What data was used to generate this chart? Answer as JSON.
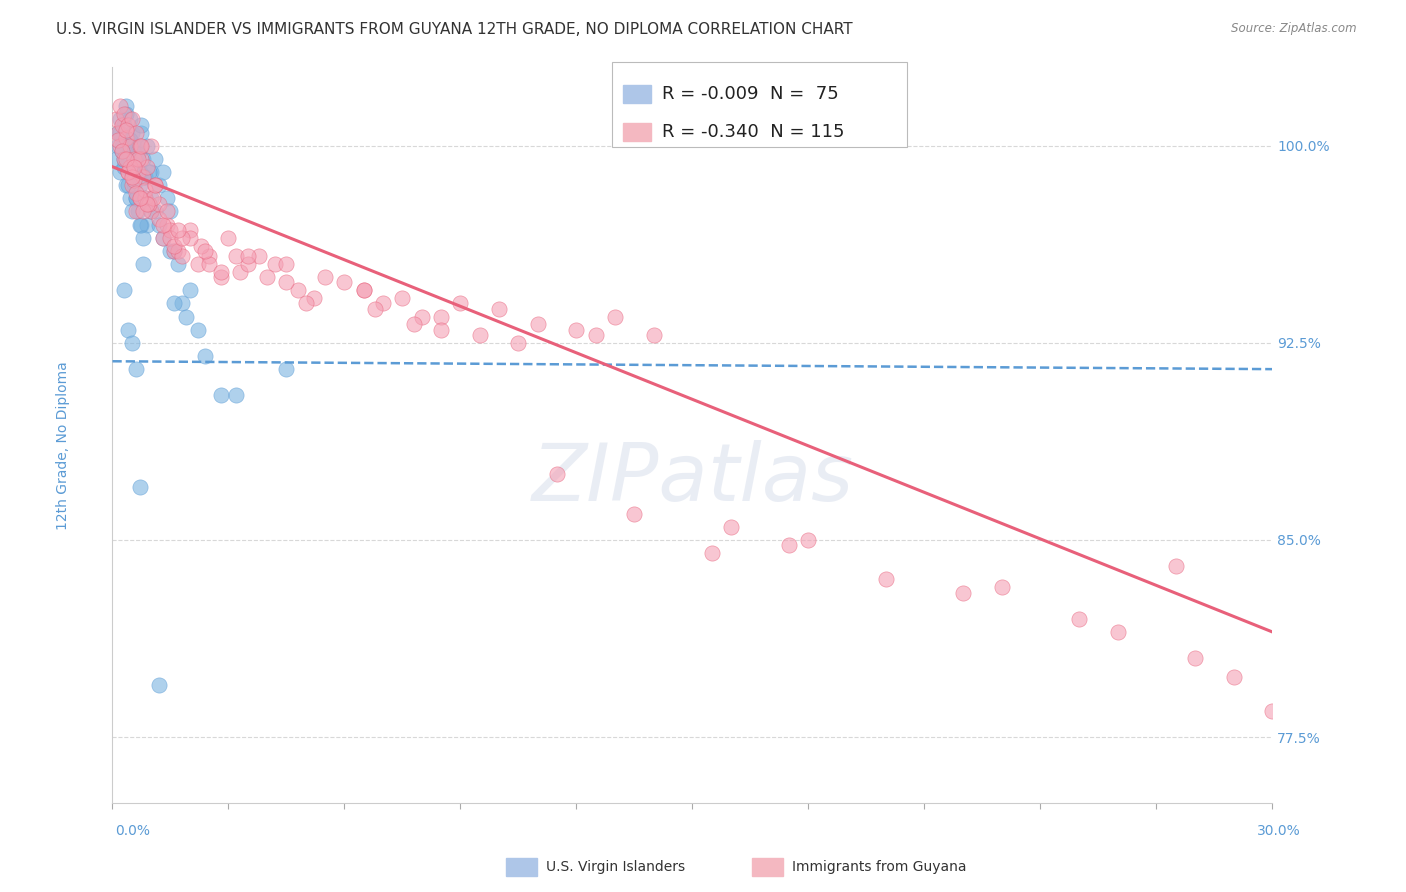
{
  "title": "U.S. VIRGIN ISLANDER VS IMMIGRANTS FROM GUYANA 12TH GRADE, NO DIPLOMA CORRELATION CHART",
  "source": "Source: ZipAtlas.com",
  "ylabel": "12th Grade, No Diploma",
  "ymin": 75.0,
  "ymax": 103.0,
  "xmin": 0.0,
  "xmax": 30.0,
  "legend_entries": [
    {
      "label": "R = -0.009  N =  75",
      "color": "#aec6e8"
    },
    {
      "label": "R = -0.340  N = 115",
      "color": "#f4b8c1"
    }
  ],
  "legend_bottom": [
    "U.S. Virgin Islanders",
    "Immigrants from Guyana"
  ],
  "watermark": "ZIPatlas",
  "blue_scatter_x": [
    0.1,
    0.15,
    0.2,
    0.2,
    0.25,
    0.3,
    0.3,
    0.35,
    0.35,
    0.4,
    0.4,
    0.45,
    0.45,
    0.5,
    0.5,
    0.55,
    0.55,
    0.6,
    0.6,
    0.65,
    0.65,
    0.7,
    0.7,
    0.75,
    0.75,
    0.8,
    0.85,
    0.9,
    0.9,
    1.0,
    1.0,
    1.1,
    1.1,
    1.2,
    1.2,
    1.3,
    1.3,
    1.4,
    1.5,
    1.6,
    1.7,
    1.8,
    1.9,
    2.0,
    2.2,
    2.4,
    0.15,
    0.25,
    0.35,
    0.45,
    0.55,
    0.65,
    0.75,
    0.85,
    0.95,
    0.2,
    0.3,
    0.4,
    0.5,
    0.6,
    0.7,
    0.8,
    1.0,
    1.5,
    2.8,
    1.6,
    0.3,
    0.4,
    0.5,
    0.6,
    0.7,
    4.5,
    0.8,
    3.2,
    1.2
  ],
  "blue_scatter_y": [
    99.5,
    100.5,
    101.0,
    99.0,
    100.0,
    100.8,
    99.2,
    101.5,
    98.5,
    100.0,
    99.5,
    101.0,
    98.0,
    100.5,
    99.0,
    100.0,
    98.5,
    99.5,
    98.0,
    100.0,
    97.5,
    99.0,
    98.5,
    100.5,
    97.0,
    99.5,
    98.0,
    100.0,
    97.0,
    99.0,
    98.0,
    99.5,
    97.5,
    98.5,
    97.0,
    99.0,
    96.5,
    98.0,
    97.5,
    96.0,
    95.5,
    94.0,
    93.5,
    94.5,
    93.0,
    92.0,
    100.0,
    99.8,
    101.2,
    100.2,
    99.3,
    99.7,
    100.8,
    98.8,
    99.0,
    100.5,
    99.5,
    98.5,
    97.5,
    98.0,
    97.0,
    96.5,
    97.5,
    96.0,
    90.5,
    94.0,
    94.5,
    93.0,
    92.5,
    91.5,
    87.0,
    91.5,
    95.5,
    90.5,
    79.5
  ],
  "pink_scatter_x": [
    0.1,
    0.15,
    0.2,
    0.2,
    0.25,
    0.3,
    0.3,
    0.35,
    0.4,
    0.4,
    0.45,
    0.5,
    0.5,
    0.55,
    0.6,
    0.6,
    0.65,
    0.7,
    0.7,
    0.75,
    0.8,
    0.85,
    0.9,
    1.0,
    1.0,
    1.1,
    1.2,
    1.3,
    1.4,
    1.5,
    1.6,
    0.15,
    0.25,
    0.35,
    0.45,
    0.55,
    0.65,
    0.75,
    0.85,
    0.95,
    1.05,
    1.5,
    1.7,
    2.0,
    2.2,
    2.5,
    2.8,
    3.0,
    3.3,
    3.8,
    4.2,
    4.8,
    5.5,
    6.0,
    6.5,
    7.0,
    8.0,
    9.0,
    10.0,
    11.0,
    12.0,
    13.0,
    14.0,
    5.2,
    4.5,
    3.5,
    2.5,
    1.8,
    6.8,
    7.5,
    8.5,
    9.5,
    2.3,
    4.0,
    3.2,
    1.2,
    0.8,
    0.6,
    0.4,
    1.6,
    2.8,
    5.0,
    7.8,
    10.5,
    12.5,
    15.5,
    17.5,
    20.0,
    22.0,
    25.0,
    27.5,
    30.0,
    1.3,
    0.9,
    1.1,
    2.0,
    0.7,
    0.5,
    1.4,
    0.35,
    3.5,
    1.8,
    2.4,
    4.5,
    6.5,
    0.55,
    1.7,
    8.5,
    16.0,
    23.0,
    28.0,
    29.0,
    26.0,
    18.0,
    13.5,
    11.5
  ],
  "pink_scatter_y": [
    101.0,
    100.5,
    101.5,
    100.0,
    100.8,
    101.2,
    99.5,
    100.3,
    100.8,
    99.0,
    100.0,
    101.0,
    98.5,
    99.5,
    100.5,
    97.5,
    99.0,
    100.0,
    98.0,
    99.5,
    98.8,
    98.0,
    99.2,
    100.0,
    97.5,
    98.5,
    97.8,
    96.5,
    97.0,
    96.8,
    96.0,
    100.2,
    99.8,
    100.6,
    99.2,
    98.7,
    99.5,
    100.0,
    98.3,
    97.8,
    98.0,
    96.5,
    96.0,
    96.8,
    95.5,
    95.8,
    95.0,
    96.5,
    95.2,
    95.8,
    95.5,
    94.5,
    95.0,
    94.8,
    94.5,
    94.0,
    93.5,
    94.0,
    93.8,
    93.2,
    93.0,
    93.5,
    92.8,
    94.2,
    94.8,
    95.5,
    95.5,
    95.8,
    93.8,
    94.2,
    93.5,
    92.8,
    96.2,
    95.0,
    95.8,
    97.2,
    97.5,
    98.2,
    99.0,
    96.2,
    95.2,
    94.0,
    93.2,
    92.5,
    92.8,
    84.5,
    84.8,
    83.5,
    83.0,
    82.0,
    84.0,
    78.5,
    97.0,
    97.8,
    98.5,
    96.5,
    98.0,
    98.8,
    97.5,
    99.5,
    95.8,
    96.5,
    96.0,
    95.5,
    94.5,
    99.2,
    96.8,
    93.0,
    85.5,
    83.2,
    80.5,
    79.8,
    81.5,
    85.0,
    86.0,
    87.5
  ],
  "blue_line_x": [
    0.0,
    30.0
  ],
  "blue_line_y": [
    91.8,
    91.5
  ],
  "pink_line_x": [
    0.0,
    30.0
  ],
  "pink_line_y": [
    99.2,
    81.5
  ],
  "scatter_size": 120,
  "blue_color": "#7ab3e0",
  "pink_color": "#f4a0b4",
  "blue_line_color": "#5b9bd5",
  "pink_line_color": "#e8607a",
  "background_color": "#ffffff",
  "grid_color": "#d8d8d8",
  "ytick_vals": [
    77.5,
    85.0,
    92.5,
    100.0
  ],
  "title_fontsize": 11,
  "axis_label_fontsize": 10,
  "tick_fontsize": 10,
  "legend_fontsize": 13
}
